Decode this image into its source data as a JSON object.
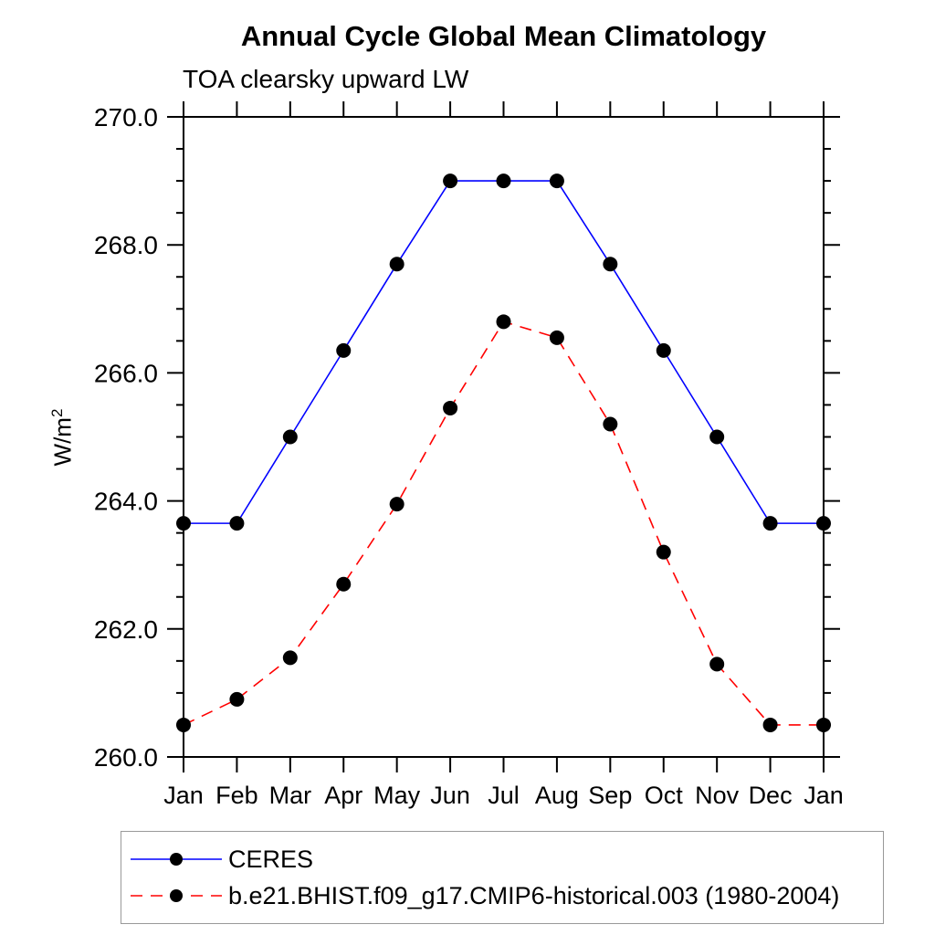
{
  "title": "Annual Cycle Global Mean Climatology",
  "subtitle": "TOA clearsky upward LW",
  "y_axis": {
    "label_base": "W/m",
    "label_superscript": "2"
  },
  "chart_data": {
    "type": "line",
    "title": "Annual Cycle Global Mean Climatology",
    "subtitle": "TOA clearsky upward LW",
    "ylabel": "W/m2",
    "xlabel": "",
    "categories": [
      "Jan",
      "Feb",
      "Mar",
      "Apr",
      "May",
      "Jun",
      "Jul",
      "Aug",
      "Sep",
      "Oct",
      "Nov",
      "Dec",
      "Jan"
    ],
    "ylim": [
      260.0,
      270.0
    ],
    "ytick_major_step": 2.0,
    "ytick_minor_step": 0.5,
    "ytick_labels": [
      "260.0",
      "262.0",
      "264.0",
      "266.0",
      "268.0",
      "270.0"
    ],
    "grid": false,
    "legend_position": "below-plot-left",
    "series": [
      {
        "name": "CERES",
        "color": "#0000ff",
        "line_style": "solid",
        "marker": "filled-circle",
        "marker_color": "#000000",
        "values": [
          263.65,
          263.65,
          265.0,
          266.35,
          267.7,
          269.0,
          269.0,
          269.0,
          267.7,
          266.35,
          265.0,
          263.65,
          263.65
        ]
      },
      {
        "name": "b.e21.BHIST.f09_g17.CMIP6-historical.003 (1980-2004)",
        "color": "#ff0000",
        "line_style": "dashed",
        "marker": "filled-circle",
        "marker_color": "#000000",
        "values": [
          260.5,
          260.9,
          261.55,
          262.7,
          263.95,
          265.45,
          266.8,
          266.55,
          265.2,
          263.2,
          261.45,
          260.5,
          260.5
        ]
      }
    ]
  }
}
